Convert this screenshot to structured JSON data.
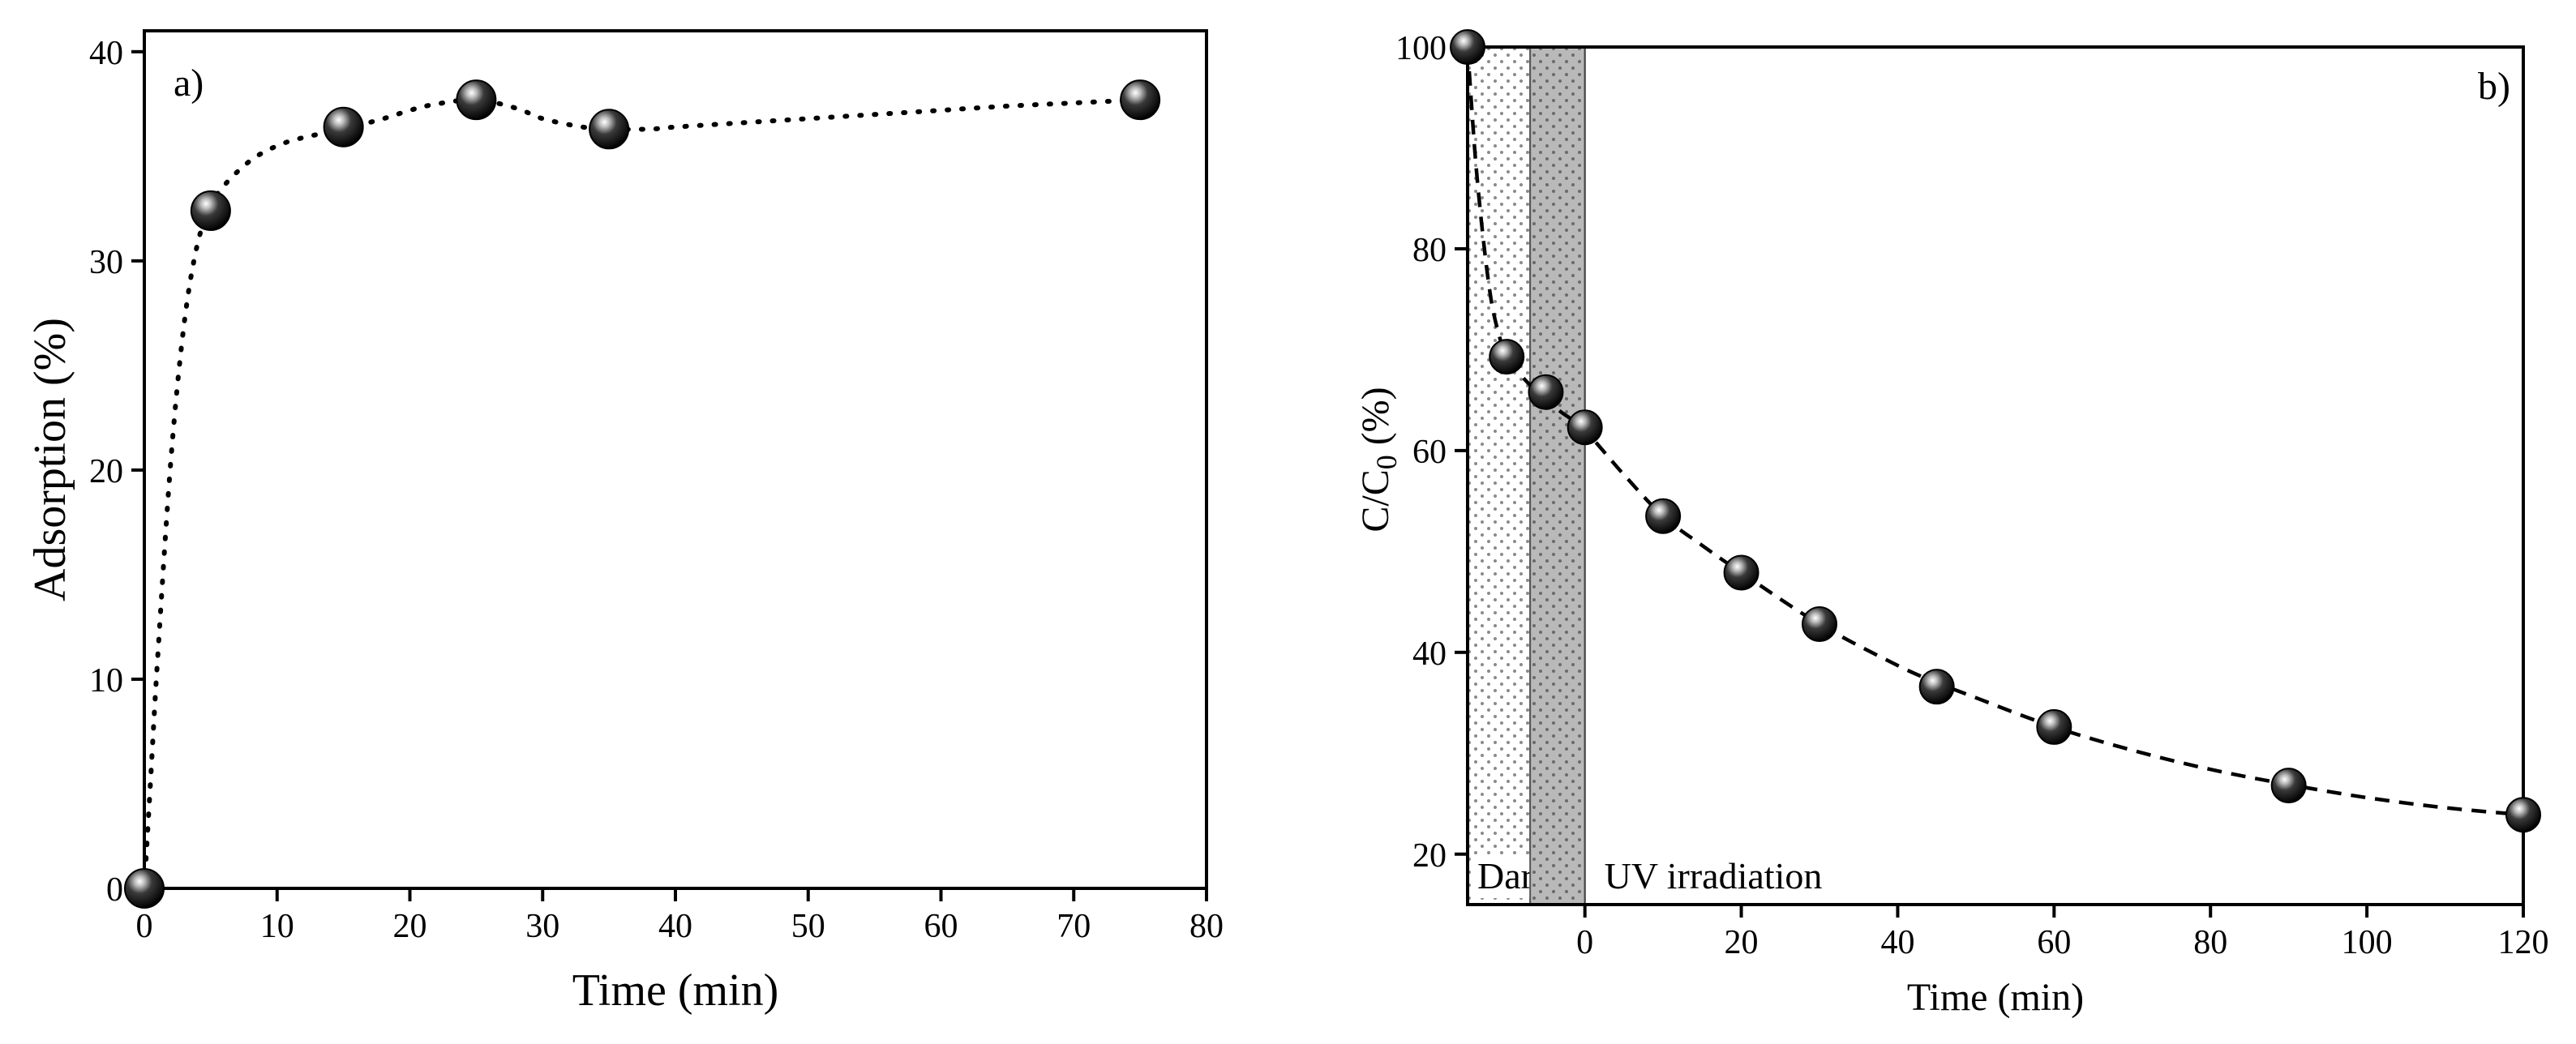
{
  "chart_data": [
    {
      "type": "scatter",
      "panel_label": "a)",
      "xlabel": "Time (min)",
      "ylabel": "Adsorption (%)",
      "xlim": [
        0,
        80
      ],
      "ylim": [
        0,
        41
      ],
      "xticks": [
        0,
        10,
        20,
        30,
        40,
        50,
        60,
        70,
        80
      ],
      "yticks": [
        0,
        10,
        20,
        30,
        40
      ],
      "fit_style": "dotted",
      "series": [
        {
          "name": "Adsorption",
          "x": [
            0,
            5,
            15,
            25,
            35,
            75
          ],
          "y": [
            0,
            32.4,
            36.4,
            37.7,
            36.3,
            37.7
          ]
        }
      ],
      "fit_curve": {
        "x": [
          0,
          0.5,
          1,
          2,
          3,
          4,
          5,
          6,
          8,
          10,
          12,
          15,
          18,
          20,
          22,
          25,
          28,
          30,
          33,
          35,
          38,
          40,
          45,
          50,
          55,
          60,
          65,
          70,
          75
        ],
        "y": [
          0,
          5.5,
          11,
          20.5,
          27,
          30.8,
          32.6,
          33.6,
          34.8,
          35.5,
          35.9,
          36.3,
          36.8,
          37.2,
          37.5,
          37.7,
          37.3,
          36.8,
          36.4,
          36.3,
          36.3,
          36.4,
          36.6,
          36.8,
          37.0,
          37.2,
          37.4,
          37.55,
          37.7
        ]
      }
    },
    {
      "type": "scatter",
      "panel_label": "b)",
      "xlabel": "Time (min)",
      "ylabel": "C/C",
      "ylabel_subscript": "0",
      "ylabel_suffix": " (%)",
      "xlim": [
        -15,
        120
      ],
      "ylim": [
        15,
        100
      ],
      "xticks": [
        0,
        20,
        40,
        60,
        80,
        100,
        120
      ],
      "yticks": [
        20,
        40,
        60,
        80,
        100
      ],
      "fit_style": "dashed",
      "series": [
        {
          "name": "C/C0",
          "x": [
            -15,
            -10,
            -5,
            0,
            10,
            20,
            30,
            45,
            60,
            90,
            120
          ],
          "y": [
            100,
            69.3,
            65.8,
            62.3,
            53.5,
            47.9,
            42.8,
            36.6,
            32.6,
            26.8,
            23.9
          ]
        }
      ],
      "fit_curve": {
        "x": [
          -15,
          -14,
          -13,
          -12,
          -11,
          -10,
          -8,
          -5,
          -3,
          0,
          5,
          10,
          15,
          20,
          30,
          40,
          45,
          50,
          60,
          70,
          80,
          90,
          100,
          110,
          120
        ],
        "y": [
          100,
          89,
          81,
          75,
          71.5,
          69.3,
          67.3,
          65.0,
          63.8,
          62.0,
          57.6,
          53.5,
          50.6,
          47.9,
          42.8,
          38.7,
          37.0,
          35.5,
          32.6,
          30.3,
          28.4,
          26.9,
          25.6,
          24.6,
          23.9
        ]
      },
      "regions": [
        {
          "label": "Dark",
          "x_start": -15,
          "x_end": -7,
          "fill": "dotted"
        },
        {
          "label": "",
          "x_start": -7,
          "x_end": 0,
          "fill": "gray-dotted"
        },
        {
          "label": "UV irradiation",
          "x_start": 0,
          "x_end": 120,
          "fill": "none"
        }
      ]
    }
  ]
}
